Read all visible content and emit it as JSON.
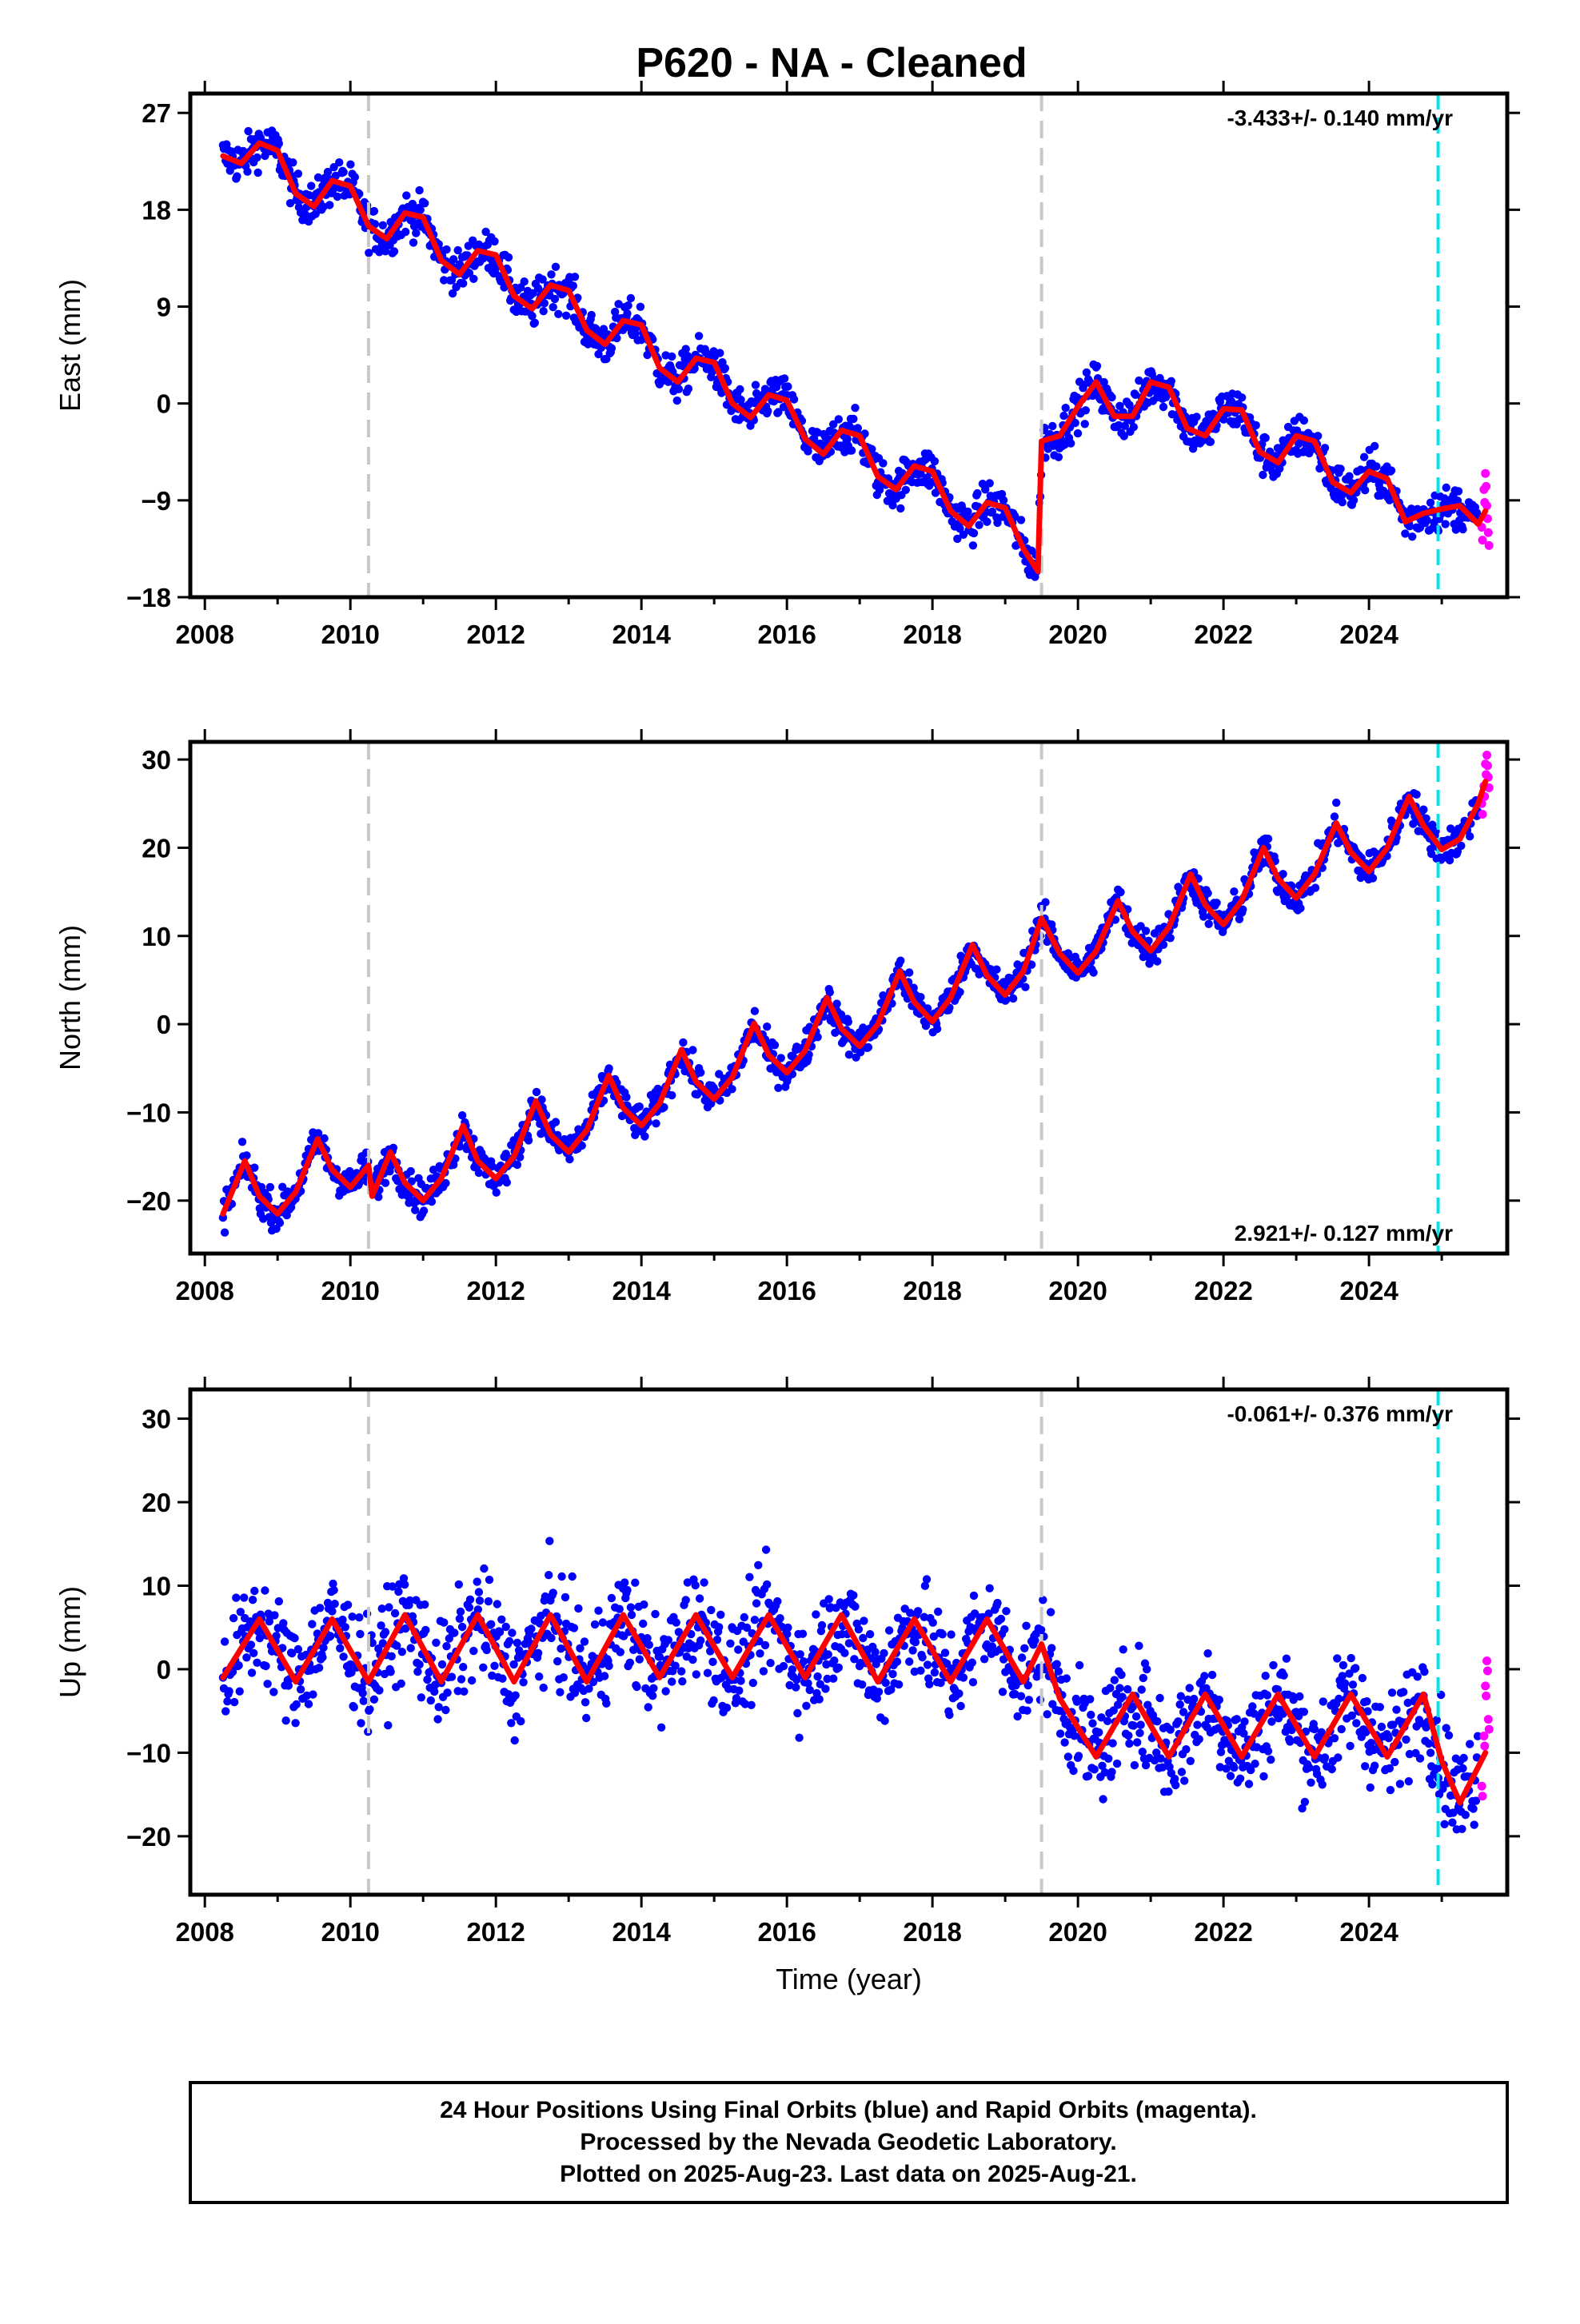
{
  "title": "P620  - NA - Cleaned",
  "footer": {
    "line1": "24 Hour Positions Using Final Orbits (blue) and Rapid Orbits (magenta).",
    "line2": "Processed by the Nevada Geodetic Laboratory.",
    "line3": "Plotted on 2025-Aug-23. Last data on 2025-Aug-21."
  },
  "colors": {
    "final_orbits": "#0000ff",
    "rapid_orbits": "#ff00ff",
    "model": "#ff0000",
    "equipment_change": "#c8c8c8",
    "cyan_marker": "#00e5ee"
  },
  "chart_data": [
    {
      "type": "scatter",
      "ylabel": "East (mm)",
      "xlabel": "",
      "xlim": [
        2007.8,
        2025.9
      ],
      "ylim": [
        -18,
        28.8
      ],
      "xticks": [
        2008,
        2010,
        2012,
        2014,
        2016,
        2018,
        2020,
        2022,
        2024
      ],
      "yticks": [
        -18,
        -9,
        0,
        9,
        18,
        27
      ],
      "rate_text": "-3.433+/- 0.140 mm/yr",
      "rate_position": "top-right",
      "vertical_lines": {
        "gray": [
          2010.25,
          2019.5
        ],
        "cyan": [
          2024.95
        ]
      },
      "offsets": [
        {
          "x": 2019.5,
          "from": -15.6,
          "to": -3.5
        }
      ],
      "series": [
        {
          "kind": "model",
          "x": [
            2008.25,
            2008.5,
            2008.75,
            2009.0,
            2009.25,
            2009.5,
            2009.75,
            2010.0,
            2010.25,
            2010.5,
            2010.75,
            2011.0,
            2011.25,
            2011.5,
            2011.75,
            2012.0,
            2012.25,
            2012.5,
            2012.75,
            2013.0,
            2013.25,
            2013.5,
            2013.75,
            2014.0,
            2014.25,
            2014.5,
            2014.75,
            2015.0,
            2015.25,
            2015.5,
            2015.75,
            2016.0,
            2016.25,
            2016.5,
            2016.75,
            2017.0,
            2017.25,
            2017.5,
            2017.75,
            2018.0,
            2018.25,
            2018.5,
            2018.75,
            2019.0,
            2019.25,
            2019.45,
            2019.5,
            2019.75,
            2020.0,
            2020.25,
            2020.5,
            2020.75,
            2021.0,
            2021.25,
            2021.5,
            2021.75,
            2022.0,
            2022.25,
            2022.5,
            2022.75,
            2023.0,
            2023.25,
            2023.5,
            2023.75,
            2024.0,
            2024.25,
            2024.5,
            2024.75,
            2025.0,
            2025.25,
            2025.5,
            2025.6
          ],
          "y": [
            23,
            22.3,
            24.2,
            23.5,
            19.5,
            18.3,
            20.7,
            20.2,
            16.5,
            15.3,
            17.7,
            17.3,
            13.3,
            12.0,
            14.2,
            13.8,
            10.0,
            8.8,
            11.0,
            10.5,
            6.8,
            5.5,
            7.7,
            7.3,
            3.3,
            2.0,
            4.2,
            3.8,
            0.0,
            -1.3,
            0.8,
            0.3,
            -3.3,
            -4.7,
            -2.5,
            -3.0,
            -6.8,
            -8.0,
            -5.8,
            -6.3,
            -10.0,
            -11.4,
            -9.2,
            -9.7,
            -13.5,
            -15.6,
            -3.5,
            -3.0,
            -0.3,
            2.0,
            -1.2,
            -1.2,
            2.0,
            1.5,
            -2.3,
            -3.0,
            -0.5,
            -0.6,
            -4.5,
            -5.5,
            -3.0,
            -3.5,
            -7.3,
            -8.3,
            -6.3,
            -7.0,
            -11.0,
            -10.2,
            -9.8,
            -9.5,
            -11.2,
            -10.0
          ]
        },
        {
          "kind": "rapid",
          "x": [
            2025.55,
            2025.58,
            2025.6,
            2025.62,
            2025.64
          ],
          "y": [
            -11.5,
            -8.0,
            -6.5,
            -9.5,
            -12.0
          ]
        }
      ]
    },
    {
      "type": "scatter",
      "ylabel": "North (mm)",
      "xlabel": "",
      "xlim": [
        2007.8,
        2025.9
      ],
      "ylim": [
        -26,
        32
      ],
      "xticks": [
        2008,
        2010,
        2012,
        2014,
        2016,
        2018,
        2020,
        2022,
        2024
      ],
      "yticks": [
        -20,
        -10,
        0,
        10,
        20,
        30
      ],
      "rate_text": "2.921+/- 0.127 mm/yr",
      "rate_position": "bottom-right",
      "vertical_lines": {
        "gray": [
          2010.25,
          2019.5
        ],
        "cyan": [
          2024.95
        ]
      },
      "offsets": [
        {
          "x": 2010.25,
          "from": -16.0,
          "to": -19.5
        }
      ],
      "series": [
        {
          "kind": "model",
          "x": [
            2008.25,
            2008.55,
            2008.75,
            2009.0,
            2009.25,
            2009.55,
            2009.75,
            2010.0,
            2010.25,
            2010.3,
            2010.55,
            2010.75,
            2011.0,
            2011.25,
            2011.55,
            2011.75,
            2012.0,
            2012.25,
            2012.55,
            2012.75,
            2013.0,
            2013.25,
            2013.55,
            2013.75,
            2014.0,
            2014.25,
            2014.55,
            2014.75,
            2015.0,
            2015.25,
            2015.55,
            2015.75,
            2016.0,
            2016.25,
            2016.55,
            2016.75,
            2017.0,
            2017.25,
            2017.55,
            2017.75,
            2018.0,
            2018.25,
            2018.55,
            2018.75,
            2019.0,
            2019.25,
            2019.5,
            2019.75,
            2020.0,
            2020.25,
            2020.55,
            2020.75,
            2021.0,
            2021.25,
            2021.55,
            2021.75,
            2022.0,
            2022.25,
            2022.55,
            2022.75,
            2023.0,
            2023.25,
            2023.55,
            2023.75,
            2024.0,
            2024.25,
            2024.55,
            2024.75,
            2025.0,
            2025.25,
            2025.5,
            2025.6
          ],
          "y": [
            -21.5,
            -15.5,
            -19.5,
            -21.5,
            -19.0,
            -13.0,
            -16.5,
            -18.5,
            -16.0,
            -19.5,
            -14.5,
            -18.0,
            -20.0,
            -17.5,
            -11.5,
            -15.5,
            -17.5,
            -15.0,
            -8.7,
            -12.5,
            -14.5,
            -12.0,
            -5.8,
            -9.5,
            -11.5,
            -9.0,
            -2.9,
            -6.5,
            -8.5,
            -6.0,
            0.1,
            -3.5,
            -5.5,
            -3.0,
            3.0,
            -0.5,
            -2.5,
            0.0,
            6.0,
            2.5,
            0.3,
            3.0,
            9.0,
            5.5,
            3.3,
            6.0,
            12.0,
            8.0,
            5.8,
            8.3,
            14.0,
            10.5,
            8.3,
            11.0,
            17.0,
            13.5,
            11.3,
            14.0,
            20.0,
            16.5,
            14.3,
            17.0,
            22.8,
            19.5,
            17.3,
            20.0,
            25.8,
            22.5,
            19.8,
            21.0,
            25.0,
            27.5
          ]
        },
        {
          "kind": "rapid",
          "x": [
            2025.55,
            2025.58,
            2025.6,
            2025.62,
            2025.64
          ],
          "y": [
            25.0,
            27.0,
            29.5,
            30.5,
            28.0
          ]
        }
      ]
    },
    {
      "type": "scatter",
      "ylabel": "Up (mm)",
      "xlabel": "Time (year)",
      "xlim": [
        2007.8,
        2025.9
      ],
      "ylim": [
        -27,
        33.5
      ],
      "xticks": [
        2008,
        2010,
        2012,
        2014,
        2016,
        2018,
        2020,
        2022,
        2024
      ],
      "yticks": [
        -20,
        -10,
        0,
        10,
        20,
        30
      ],
      "rate_text": "-0.061+/- 0.376 mm/yr",
      "rate_position": "top-right",
      "vertical_lines": {
        "gray": [
          2010.25,
          2019.5
        ],
        "cyan": [
          2024.95
        ]
      },
      "offsets": [
        {
          "x": 2019.5,
          "from": 3.0,
          "to": -5.0
        }
      ],
      "series": [
        {
          "kind": "model",
          "x": [
            2008.25,
            2008.75,
            2009.25,
            2009.75,
            2010.25,
            2010.75,
            2011.25,
            2011.75,
            2012.25,
            2012.75,
            2013.25,
            2013.75,
            2014.25,
            2014.75,
            2015.25,
            2015.75,
            2016.25,
            2016.75,
            2017.25,
            2017.75,
            2018.25,
            2018.75,
            2019.25,
            2019.5,
            2019.75,
            2020.25,
            2020.75,
            2021.25,
            2021.75,
            2022.25,
            2022.75,
            2023.25,
            2023.75,
            2024.25,
            2024.75,
            2025.0,
            2025.25,
            2025.6
          ],
          "y": [
            -1.0,
            6.0,
            -1.5,
            6.0,
            -1.5,
            6.5,
            -1.5,
            6.5,
            -1.5,
            6.5,
            -1.5,
            6.5,
            -1.0,
            6.5,
            -1.0,
            6.5,
            -1.0,
            6.5,
            -1.5,
            6.0,
            -1.5,
            6.0,
            -1.5,
            3.0,
            -3.5,
            -10.5,
            -3.0,
            -10.5,
            -3.0,
            -10.5,
            -3.0,
            -10.5,
            -3.0,
            -10.5,
            -3.0,
            -11.0,
            -16.0,
            -10.0
          ]
        },
        {
          "kind": "rapid",
          "x": [
            2025.55,
            2025.58,
            2025.6,
            2025.62,
            2025.64
          ],
          "y": [
            -14.0,
            -8.0,
            -2.0,
            1.0,
            -6.0
          ]
        }
      ]
    }
  ]
}
